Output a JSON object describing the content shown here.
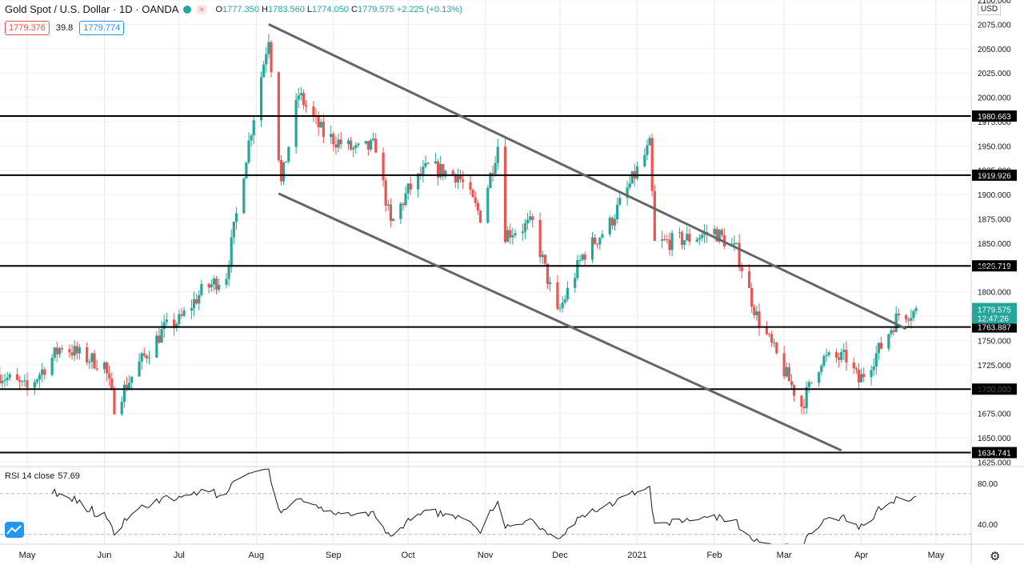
{
  "header": {
    "title": "Gold Spot / U.S. Dollar · 1D · OANDA",
    "open_label": "O",
    "open": "1777.350",
    "high_label": "H",
    "high": "1783.560",
    "low_label": "L",
    "low": "1774.050",
    "close_label": "C",
    "close": "1779.575",
    "change": "+2.225 (+0.13%)",
    "bid": "1779.376",
    "spread": "39.8",
    "ask": "1779.774"
  },
  "currency_badge": "USD",
  "countdown": "12:47:26",
  "settings_icon": "gear-icon",
  "logo_icon": "tradingview-logo-icon",
  "rsi": {
    "label": "RSI 14 close",
    "value": "57.69",
    "ticks": [
      80,
      40
    ],
    "upper_band": 70,
    "lower_band": 30
  },
  "colors": {
    "up": "#26a69a",
    "down": "#ef5350",
    "line": "#666666",
    "level": "#000000"
  },
  "chart_data": {
    "type": "candlestick",
    "title": "Gold Spot / U.S. Dollar",
    "timeframe": "1D",
    "xlabel": "",
    "ylabel": "",
    "ylim": [
      1620,
      2110
    ],
    "y_ticks": [
      1625,
      1650,
      1675,
      1700,
      1725,
      1750,
      1775,
      1800,
      1825,
      1850,
      1875,
      1900,
      1925,
      1950,
      1975,
      2000,
      2025,
      2050,
      2075,
      2100
    ],
    "x_ticks": [
      {
        "label": "May",
        "date": "2020-05-01"
      },
      {
        "label": "Jun",
        "date": "2020-06-01"
      },
      {
        "label": "Jul",
        "date": "2020-07-01"
      },
      {
        "label": "Aug",
        "date": "2020-08-01"
      },
      {
        "label": "Sep",
        "date": "2020-09-01"
      },
      {
        "label": "Oct",
        "date": "2020-10-01"
      },
      {
        "label": "Nov",
        "date": "2020-11-01"
      },
      {
        "label": "Dec",
        "date": "2020-12-01"
      },
      {
        "label": "2021",
        "date": "2021-01-01"
      },
      {
        "label": "Feb",
        "date": "2021-02-01"
      },
      {
        "label": "Mar",
        "date": "2021-03-01"
      },
      {
        "label": "Apr",
        "date": "2021-04-01"
      },
      {
        "label": "May",
        "date": "2021-05-01"
      }
    ],
    "horizontal_levels": [
      {
        "label": "1980.663",
        "value": 1980.663
      },
      {
        "label": "1919.926",
        "value": 1919.926
      },
      {
        "label": "1826.719",
        "value": 1826.719
      },
      {
        "label": "1763.887",
        "value": 1763.887
      },
      {
        "label": "1700.000",
        "value": 1700.0
      },
      {
        "label": "1634.741",
        "value": 1634.741
      }
    ],
    "last_price": {
      "label": "1779.575",
      "value": 1779.575
    },
    "trendlines": [
      {
        "name": "",
        "from": {
          "date": "2020-08-06",
          "price": 2075
        },
        "to": {
          "date": "2021-04-19",
          "price": 1762
        }
      },
      {
        "name": "",
        "from": {
          "date": "2020-08-10",
          "price": 1901
        },
        "to": {
          "date": "2021-03-24",
          "price": 1637
        }
      }
    ],
    "close_series": [
      {
        "date": "2020-04-20",
        "close": 1715
      },
      {
        "date": "2020-05-01",
        "close": 1700
      },
      {
        "date": "2020-05-15",
        "close": 1745
      },
      {
        "date": "2020-05-22",
        "close": 1735
      },
      {
        "date": "2020-06-01",
        "close": 1725
      },
      {
        "date": "2020-06-05",
        "close": 1683
      },
      {
        "date": "2020-06-15",
        "close": 1726
      },
      {
        "date": "2020-06-25",
        "close": 1762
      },
      {
        "date": "2020-07-01",
        "close": 1770
      },
      {
        "date": "2020-07-10",
        "close": 1800
      },
      {
        "date": "2020-07-20",
        "close": 1818
      },
      {
        "date": "2020-07-28",
        "close": 1940
      },
      {
        "date": "2020-08-06",
        "close": 2063
      },
      {
        "date": "2020-08-11",
        "close": 1911
      },
      {
        "date": "2020-08-18",
        "close": 2003
      },
      {
        "date": "2020-08-28",
        "close": 1962
      },
      {
        "date": "2020-09-10",
        "close": 1945
      },
      {
        "date": "2020-09-18",
        "close": 1950
      },
      {
        "date": "2020-09-24",
        "close": 1868
      },
      {
        "date": "2020-10-01",
        "close": 1904
      },
      {
        "date": "2020-10-09",
        "close": 1928
      },
      {
        "date": "2020-10-21",
        "close": 1920
      },
      {
        "date": "2020-10-30",
        "close": 1878
      },
      {
        "date": "2020-11-06",
        "close": 1951
      },
      {
        "date": "2020-11-09",
        "close": 1860
      },
      {
        "date": "2020-11-20",
        "close": 1870
      },
      {
        "date": "2020-11-30",
        "close": 1776
      },
      {
        "date": "2020-12-10",
        "close": 1837
      },
      {
        "date": "2020-12-21",
        "close": 1870
      },
      {
        "date": "2021-01-06",
        "close": 1950
      },
      {
        "date": "2021-01-08",
        "close": 1849
      },
      {
        "date": "2021-01-22",
        "close": 1855
      },
      {
        "date": "2021-02-01",
        "close": 1862
      },
      {
        "date": "2021-02-10",
        "close": 1842
      },
      {
        "date": "2021-02-18",
        "close": 1775
      },
      {
        "date": "2021-02-26",
        "close": 1734
      },
      {
        "date": "2021-03-08",
        "close": 1683
      },
      {
        "date": "2021-03-16",
        "close": 1731
      },
      {
        "date": "2021-03-26",
        "close": 1732
      },
      {
        "date": "2021-03-31",
        "close": 1708
      },
      {
        "date": "2021-04-09",
        "close": 1744
      },
      {
        "date": "2021-04-16",
        "close": 1777
      },
      {
        "date": "2021-04-23",
        "close": 1779.575
      }
    ]
  }
}
